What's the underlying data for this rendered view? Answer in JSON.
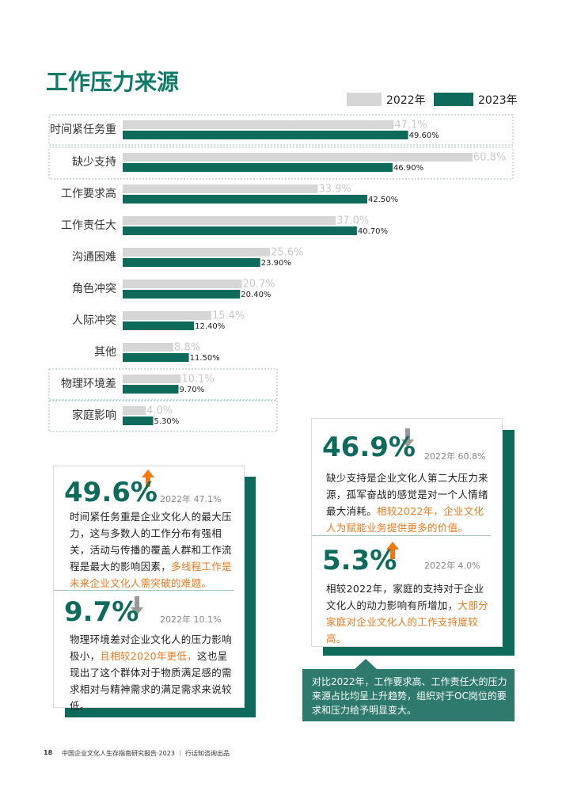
{
  "chart_data": {
    "type": "hbar",
    "title": "工作压力来源",
    "categories": [
      "时间紧任务重",
      "缺少支持",
      "工作要求高",
      "工作责任大",
      "沟通困难",
      "角色冲突",
      "人际冲突",
      "其他",
      "物理环境差",
      "家庭影响"
    ],
    "series": [
      {
        "name": "2022年",
        "color": "#d6d6d6",
        "values": [
          47.1,
          60.8,
          33.9,
          37.0,
          25.6,
          20.7,
          15.4,
          8.8,
          10.1,
          4.0
        ],
        "value_labels": [
          "47.1%",
          "60.8%",
          "33.9%",
          "37.0%",
          "25.6%",
          "20.7%",
          "15.4%",
          "8.8%",
          "10.1%",
          "4.0%"
        ]
      },
      {
        "name": "2023年",
        "color": "#0e6b5c",
        "values": [
          49.6,
          46.9,
          42.5,
          40.7,
          23.9,
          20.4,
          12.4,
          11.5,
          9.7,
          5.3
        ],
        "value_labels": [
          "49.60%",
          "46.90%",
          "42.50%",
          "40.70%",
          "23.90%",
          "20.40%",
          "12.40%",
          "11.50%",
          "9.70%",
          "5.30%"
        ]
      }
    ]
  },
  "cards": [
    {
      "items": [
        {
          "value": "49.6%",
          "compare": "2022年 47.1%",
          "segments": [
            {
              "text": "时间紧任务重是企业文化人的最大压力，这与多数人的工作分布有强相关，活动与传播的覆盖人群和工作流程是最大的影响因素，",
              "emphasis": false
            },
            {
              "text": "多线程工作是未来企业文化人需突破的难题。",
              "emphasis": true
            }
          ]
        },
        {
          "value": "9.7%",
          "compare": "2022年 10.1%",
          "segments": [
            {
              "text": "物理环境差对企业文化人的压力影响极小，",
              "emphasis": false
            },
            {
              "text": "且相较2020年更低，",
              "emphasis": true
            },
            {
              "text": "这也呈现出了这个群体对于物质满足感的需求相对与精神需求的满足需求来说较低。",
              "emphasis": false
            }
          ]
        }
      ]
    },
    {
      "items": [
        {
          "value": "46.9%",
          "compare": "2022年 60.8%",
          "segments": [
            {
              "text": "缺少支持是企业文化人第二大压力来源，孤军奋战的感觉是对一个人情绪最大消耗。",
              "emphasis": false
            },
            {
              "text": "相较2022年，企业文化人为赋能业务提供更多的价值。",
              "emphasis": true
            }
          ]
        },
        {
          "value": "5.3%",
          "compare": "2022年 4.0%",
          "segments": [
            {
              "text": "相较2022年，家庭的支持对于企业文化人的动力影响有所增加，",
              "emphasis": false
            },
            {
              "text": "大部分家庭对企业文化人的工作支持度较高。",
              "emphasis": true
            }
          ]
        }
      ]
    }
  ],
  "callout": "对比2022年，工作要求高、工作责任大的压力来源占比均呈上升趋势，组织对于OC岗位的要求和压力给予明显变大。",
  "footer": {
    "page": "18",
    "text": "中国企业文化人生存指南研究报告·2023 ｜ 行话知咨询出品"
  }
}
